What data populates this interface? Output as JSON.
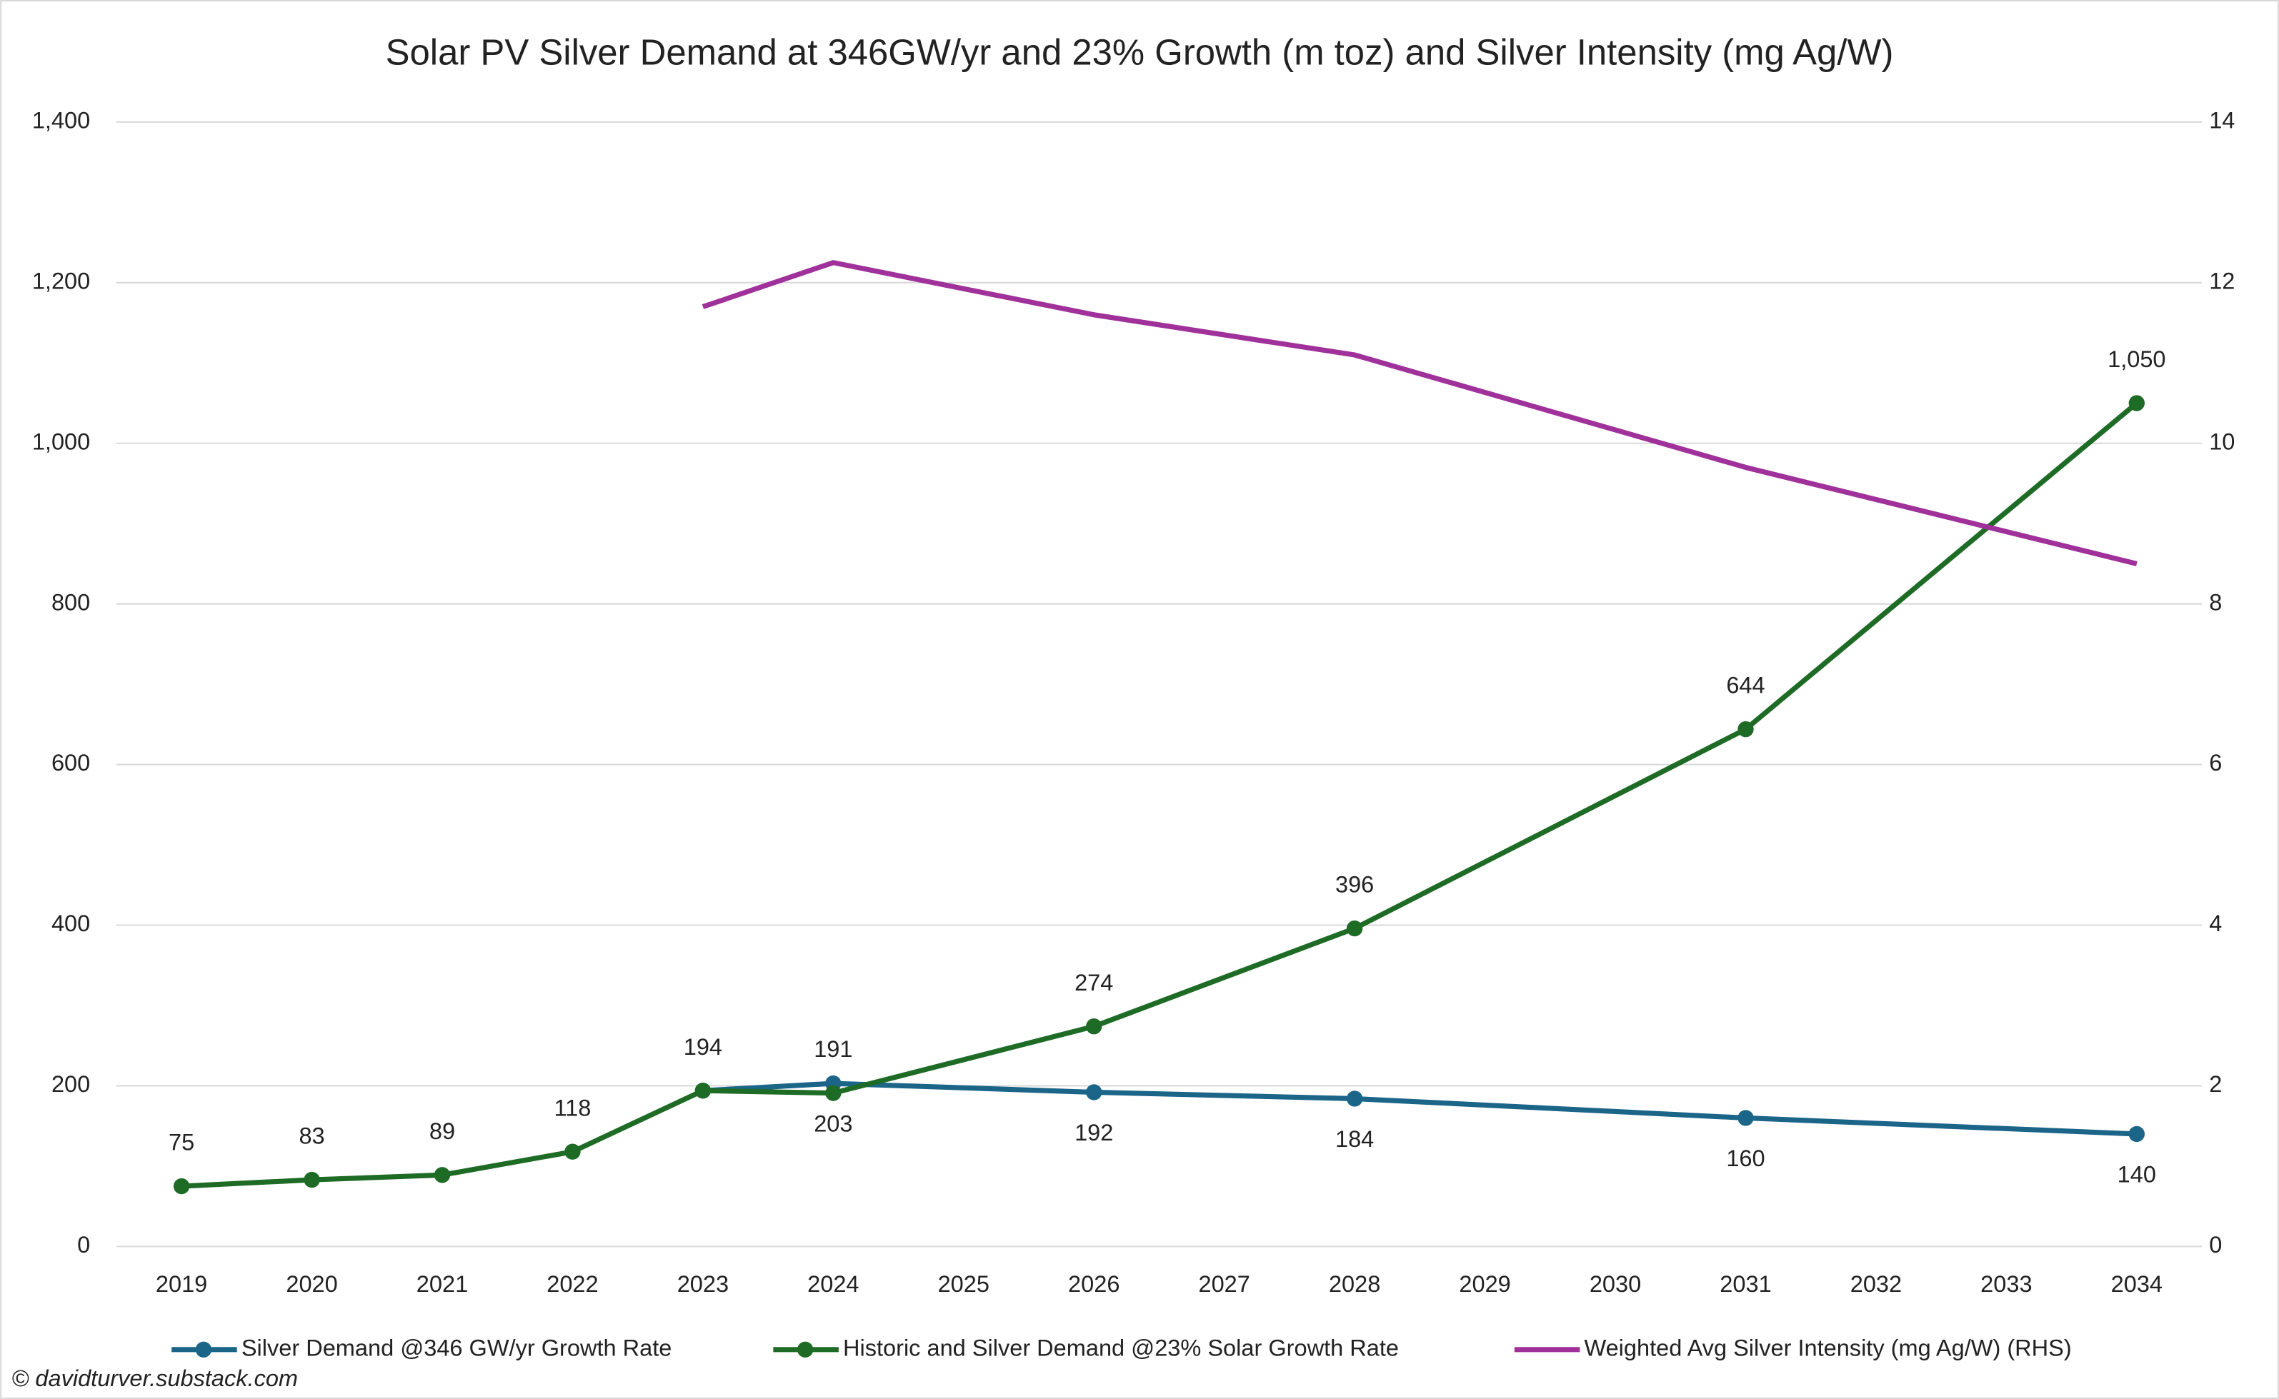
{
  "chart_data": {
    "type": "line",
    "title": "Solar PV Silver Demand at 346GW/yr and 23% Growth (m toz) and Silver Intensity (mg Ag/W)",
    "xlim": [
      2018.5,
      2034.5
    ],
    "xticks": [
      2019,
      2020,
      2021,
      2022,
      2023,
      2024,
      2025,
      2026,
      2027,
      2028,
      2029,
      2030,
      2031,
      2032,
      2033,
      2034
    ],
    "ylim": [
      0,
      1400
    ],
    "yticks": [
      0,
      200,
      400,
      600,
      800,
      {
        "value": 1000,
        "label": "1,000"
      },
      {
        "value": 1200,
        "label": "1,200"
      },
      {
        "value": 1400,
        "label": "1,400"
      }
    ],
    "y2lim": [
      0,
      14
    ],
    "y2ticks": [
      0,
      2,
      4,
      6,
      8,
      10,
      12,
      14
    ],
    "grid": true,
    "legend": "bottom",
    "series": [
      {
        "name": "Silver Demand @346 GW/yr Growth Rate",
        "color": "#1b6589",
        "marker": true,
        "label_position": "below",
        "x": [
          2023,
          2024,
          2026,
          2028,
          2031,
          2034
        ],
        "values": [
          194,
          203,
          192,
          184,
          160,
          140
        ],
        "value_labels": [
          null,
          "203",
          "192",
          "184",
          "160",
          "140"
        ]
      },
      {
        "name": "Historic and Silver Demand @23% Solar Growth Rate",
        "color": "#1e6b26",
        "marker": true,
        "label_position": "above",
        "x": [
          2019,
          2020,
          2021,
          2022,
          2023,
          2024,
          2026,
          2028,
          2031,
          2034
        ],
        "values": [
          75,
          83,
          89,
          118,
          194,
          191,
          274,
          396,
          644,
          1050
        ],
        "value_labels": [
          "75",
          "83",
          "89",
          "118",
          "194",
          "191",
          "274",
          "396",
          "644",
          "1,050"
        ]
      },
      {
        "name": "Weighted Avg Silver Intensity (mg Ag/W) (RHS)",
        "color": "#a0309a",
        "marker": false,
        "axis": "y2",
        "x": [
          2023,
          2024,
          2026,
          2028,
          2031,
          2034
        ],
        "values": [
          11.7,
          12.25,
          11.6,
          11.1,
          9.7,
          8.5
        ]
      }
    ],
    "footnote": "© davidturver.substack.com"
  }
}
